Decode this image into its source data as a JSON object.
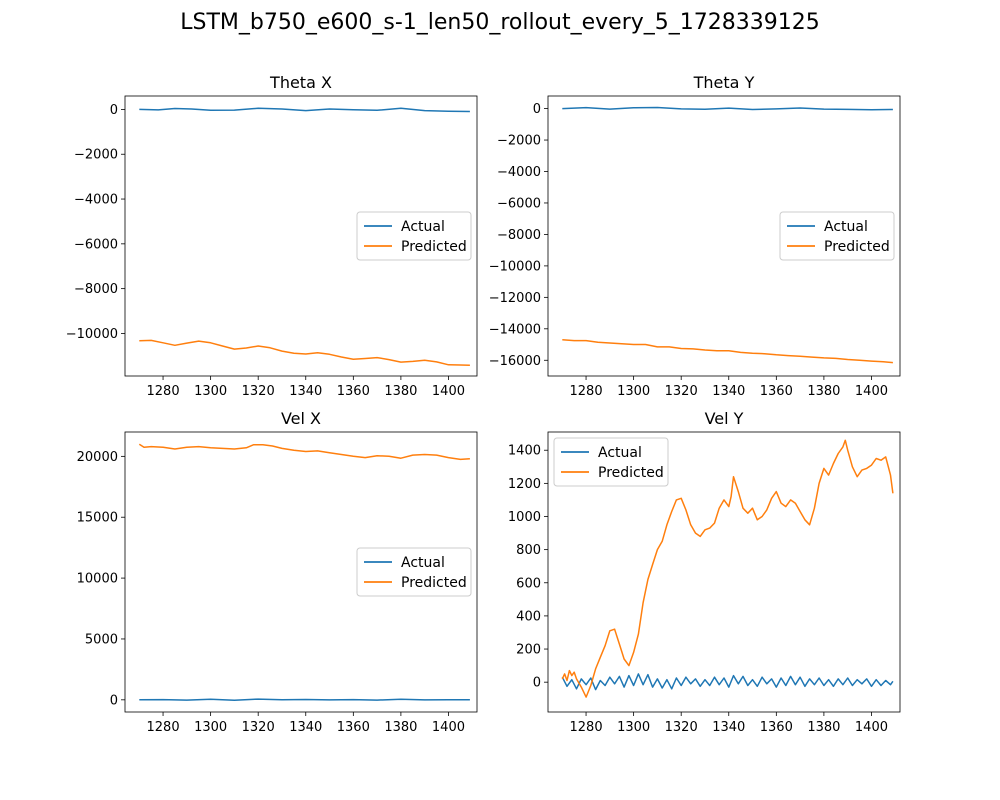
{
  "figure": {
    "title": "LSTM_b750_e600_s-1_len50_rollout_every_5_1728339125"
  },
  "colors": {
    "actual": "#1f77b4",
    "predicted": "#ff7f0e"
  },
  "chart_data": [
    {
      "type": "line",
      "title": "Theta X",
      "xlim": [
        1264,
        1412
      ],
      "ylim": [
        -11900,
        600
      ],
      "xticks": [
        1280,
        1300,
        1320,
        1340,
        1360,
        1380,
        1400
      ],
      "yticks": [
        0,
        -2000,
        -4000,
        -6000,
        -8000,
        -10000
      ],
      "ytick_labels": [
        "0",
        "−2000",
        "−4000",
        "−6000",
        "−8000",
        "−10000"
      ],
      "legend": {
        "position": "center-right",
        "entries": [
          "Actual",
          "Predicted"
        ]
      },
      "series": [
        {
          "name": "Actual",
          "color_key": "actual",
          "x": [
            1270,
            1278,
            1285,
            1292,
            1300,
            1310,
            1320,
            1330,
            1340,
            1350,
            1360,
            1370,
            1380,
            1390,
            1400,
            1409
          ],
          "y": [
            0,
            -20,
            40,
            20,
            -40,
            -30,
            50,
            20,
            -50,
            20,
            -10,
            -40,
            50,
            -50,
            -80,
            -90
          ]
        },
        {
          "name": "Predicted",
          "color_key": "predicted",
          "x": [
            1270,
            1275,
            1280,
            1285,
            1290,
            1295,
            1300,
            1305,
            1310,
            1315,
            1320,
            1325,
            1330,
            1335,
            1340,
            1345,
            1350,
            1355,
            1360,
            1365,
            1370,
            1375,
            1380,
            1385,
            1390,
            1395,
            1400,
            1405,
            1409
          ],
          "y": [
            -10330,
            -10310,
            -10420,
            -10530,
            -10430,
            -10340,
            -10420,
            -10560,
            -10700,
            -10650,
            -10560,
            -10640,
            -10790,
            -10880,
            -10920,
            -10860,
            -10930,
            -11050,
            -11150,
            -11120,
            -11080,
            -11170,
            -11280,
            -11250,
            -11200,
            -11270,
            -11400,
            -11410,
            -11420
          ]
        }
      ]
    },
    {
      "type": "line",
      "title": "Theta Y",
      "xlim": [
        1264,
        1412
      ],
      "ylim": [
        -17000,
        800
      ],
      "xticks": [
        1280,
        1300,
        1320,
        1340,
        1360,
        1380,
        1400
      ],
      "yticks": [
        0,
        -2000,
        -4000,
        -6000,
        -8000,
        -10000,
        -12000,
        -14000,
        -16000
      ],
      "ytick_labels": [
        "0",
        "−2000",
        "−4000",
        "−6000",
        "−8000",
        "−10000",
        "−12000",
        "−14000",
        "−16000"
      ],
      "legend": {
        "position": "center-right",
        "entries": [
          "Actual",
          "Predicted"
        ]
      },
      "series": [
        {
          "name": "Actual",
          "color_key": "actual",
          "x": [
            1270,
            1280,
            1290,
            1300,
            1310,
            1320,
            1330,
            1340,
            1350,
            1360,
            1370,
            1380,
            1390,
            1400,
            1409
          ],
          "y": [
            0,
            60,
            -30,
            50,
            70,
            -20,
            -40,
            30,
            -60,
            -20,
            40,
            -30,
            -50,
            -70,
            -60
          ]
        },
        {
          "name": "Predicted",
          "color_key": "predicted",
          "x": [
            1270,
            1275,
            1280,
            1285,
            1290,
            1295,
            1300,
            1305,
            1310,
            1315,
            1320,
            1325,
            1330,
            1335,
            1340,
            1345,
            1350,
            1355,
            1360,
            1365,
            1370,
            1375,
            1380,
            1385,
            1390,
            1395,
            1400,
            1405,
            1409
          ],
          "y": [
            -14700,
            -14750,
            -14750,
            -14850,
            -14900,
            -14950,
            -15000,
            -15000,
            -15150,
            -15150,
            -15250,
            -15280,
            -15350,
            -15400,
            -15400,
            -15500,
            -15550,
            -15580,
            -15650,
            -15700,
            -15750,
            -15800,
            -15850,
            -15880,
            -15950,
            -16000,
            -16050,
            -16100,
            -16150
          ]
        }
      ]
    },
    {
      "type": "line",
      "title": "Vel X",
      "xlim": [
        1264,
        1412
      ],
      "ylim": [
        -1000,
        22000
      ],
      "xticks": [
        1280,
        1300,
        1320,
        1340,
        1360,
        1380,
        1400
      ],
      "yticks": [
        0,
        5000,
        10000,
        15000,
        20000
      ],
      "ytick_labels": [
        "0",
        "5000",
        "10000",
        "15000",
        "20000"
      ],
      "legend": {
        "position": "center-right",
        "entries": [
          "Actual",
          "Predicted"
        ]
      },
      "series": [
        {
          "name": "Actual",
          "color_key": "actual",
          "x": [
            1270,
            1280,
            1290,
            1300,
            1310,
            1320,
            1330,
            1340,
            1350,
            1360,
            1370,
            1380,
            1390,
            1400,
            1409
          ],
          "y": [
            0,
            20,
            -20,
            40,
            -30,
            60,
            0,
            30,
            -10,
            20,
            -20,
            40,
            -10,
            10,
            0
          ]
        },
        {
          "name": "Predicted",
          "color_key": "predicted",
          "x": [
            1270,
            1272,
            1275,
            1280,
            1285,
            1290,
            1295,
            1300,
            1305,
            1310,
            1315,
            1318,
            1322,
            1326,
            1330,
            1335,
            1340,
            1345,
            1350,
            1355,
            1360,
            1365,
            1370,
            1375,
            1380,
            1385,
            1390,
            1395,
            1400,
            1405,
            1409
          ],
          "y": [
            21000,
            20750,
            20800,
            20750,
            20600,
            20750,
            20800,
            20700,
            20650,
            20600,
            20700,
            20950,
            20950,
            20850,
            20650,
            20500,
            20400,
            20450,
            20300,
            20150,
            20000,
            19900,
            20050,
            20000,
            19850,
            20100,
            20150,
            20100,
            19900,
            19750,
            19800
          ]
        }
      ]
    },
    {
      "type": "line",
      "title": "Vel Y",
      "xlim": [
        1264,
        1412
      ],
      "ylim": [
        -180,
        1510
      ],
      "xticks": [
        1280,
        1300,
        1320,
        1340,
        1360,
        1380,
        1400
      ],
      "yticks": [
        0,
        200,
        400,
        600,
        800,
        1000,
        1200,
        1400
      ],
      "ytick_labels": [
        "0",
        "200",
        "400",
        "600",
        "800",
        "1000",
        "1200",
        "1400"
      ],
      "legend": {
        "position": "upper-left",
        "entries": [
          "Actual",
          "Predicted"
        ]
      },
      "series": [
        {
          "name": "Actual",
          "color_key": "actual",
          "x": [
            1270,
            1272,
            1274,
            1276,
            1278,
            1280,
            1282,
            1284,
            1286,
            1288,
            1290,
            1292,
            1294,
            1296,
            1298,
            1300,
            1302,
            1304,
            1306,
            1308,
            1310,
            1312,
            1314,
            1316,
            1318,
            1320,
            1322,
            1324,
            1326,
            1328,
            1330,
            1332,
            1334,
            1336,
            1338,
            1340,
            1342,
            1344,
            1346,
            1348,
            1350,
            1352,
            1354,
            1356,
            1358,
            1360,
            1362,
            1364,
            1366,
            1368,
            1370,
            1372,
            1374,
            1376,
            1378,
            1380,
            1382,
            1384,
            1386,
            1388,
            1390,
            1392,
            1394,
            1396,
            1398,
            1400,
            1402,
            1404,
            1406,
            1408,
            1409
          ],
          "y": [
            30,
            -25,
            15,
            -40,
            20,
            -15,
            25,
            -45,
            10,
            -20,
            30,
            -10,
            35,
            -30,
            40,
            -20,
            50,
            -15,
            45,
            -30,
            20,
            -35,
            15,
            -40,
            25,
            -20,
            30,
            -10,
            20,
            -25,
            15,
            -20,
            30,
            -15,
            25,
            -30,
            40,
            -10,
            35,
            -20,
            15,
            -25,
            30,
            -10,
            20,
            -30,
            25,
            -20,
            35,
            -15,
            30,
            -25,
            20,
            -15,
            25,
            -20,
            15,
            -25,
            20,
            -15,
            25,
            -20,
            15,
            -10,
            20,
            -25,
            15,
            -20,
            10,
            -15,
            5
          ]
        },
        {
          "name": "Predicted",
          "color_key": "predicted",
          "x": [
            1270,
            1271,
            1272,
            1273,
            1274,
            1275,
            1276,
            1278,
            1280,
            1282,
            1284,
            1286,
            1288,
            1290,
            1292,
            1294,
            1296,
            1298,
            1300,
            1302,
            1304,
            1306,
            1308,
            1310,
            1312,
            1314,
            1316,
            1318,
            1320,
            1322,
            1324,
            1326,
            1328,
            1330,
            1332,
            1334,
            1336,
            1338,
            1340,
            1341,
            1342,
            1344,
            1346,
            1348,
            1350,
            1352,
            1354,
            1356,
            1358,
            1360,
            1362,
            1364,
            1366,
            1368,
            1370,
            1372,
            1374,
            1376,
            1378,
            1380,
            1382,
            1384,
            1386,
            1388,
            1389,
            1390,
            1392,
            1394,
            1396,
            1398,
            1400,
            1402,
            1404,
            1406,
            1408,
            1409
          ],
          "y": [
            20,
            50,
            10,
            70,
            40,
            60,
            20,
            -30,
            -90,
            -20,
            80,
            150,
            220,
            310,
            320,
            230,
            140,
            100,
            180,
            290,
            480,
            620,
            710,
            800,
            850,
            950,
            1030,
            1100,
            1110,
            1040,
            950,
            900,
            880,
            920,
            930,
            960,
            1050,
            1100,
            1060,
            1120,
            1240,
            1150,
            1050,
            1020,
            1050,
            980,
            1000,
            1040,
            1110,
            1150,
            1080,
            1060,
            1100,
            1080,
            1030,
            980,
            950,
            1050,
            1200,
            1290,
            1250,
            1320,
            1380,
            1420,
            1460,
            1400,
            1300,
            1240,
            1280,
            1290,
            1310,
            1350,
            1340,
            1360,
            1250,
            1140
          ]
        }
      ]
    }
  ]
}
